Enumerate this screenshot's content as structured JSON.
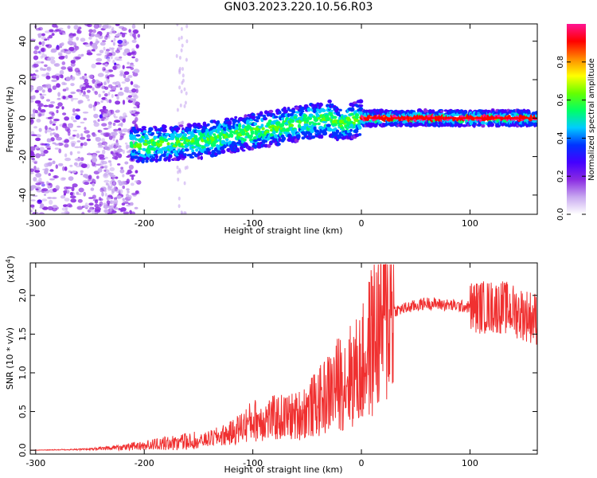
{
  "title": "GN03.2023.220.10.56.R03",
  "colors": {
    "snr_line": "#f03030",
    "colormap": [
      "#ffffff",
      "#c8a8f0",
      "#8a2be2",
      "#4400ff",
      "#0033ff",
      "#00ccff",
      "#00ff66",
      "#66ff00",
      "#ffff00",
      "#ff8800",
      "#ff0000",
      "#ff1493"
    ]
  },
  "chart_data": [
    {
      "type": "heatmap",
      "xlabel": "Height of straight line (km)",
      "ylabel": "Frequency (Hz)",
      "xlim": [
        -305,
        162
      ],
      "ylim": [
        -50,
        49
      ],
      "xticks": [
        -300,
        -200,
        -100,
        0,
        100
      ],
      "xtick_labels": [
        "-300",
        "-200",
        "-100",
        "0",
        "100"
      ],
      "yticks": [
        -40,
        -20,
        0,
        20,
        40
      ],
      "ytick_labels": [
        "-40",
        "-20",
        "0",
        "20",
        "40"
      ],
      "colorbar": {
        "label": "Normalized spectral amplitude",
        "range": [
          0,
          1
        ],
        "ticks": [
          0.0,
          0.2,
          0.4,
          0.6,
          0.8
        ],
        "tick_labels": [
          "0.0",
          "0.2",
          "0.4",
          "0.6",
          "0.8"
        ]
      },
      "ridge": [
        {
          "x": -210,
          "y": -14
        },
        {
          "x": -150,
          "y": -12
        },
        {
          "x": -100,
          "y": -7
        },
        {
          "x": -60,
          "y": -3
        },
        {
          "x": -30,
          "y": 0
        },
        {
          "x": -20,
          "y": -3
        },
        {
          "x": 0,
          "y": 0
        },
        {
          "x": 160,
          "y": 0
        }
      ]
    },
    {
      "type": "line",
      "xlabel": "Height of straight line (km)",
      "ylabel": "SNR (10 * v/v)",
      "y_multiplier": "(x10",
      "y_multiplier_exp": "4",
      "y_multiplier_close": ")",
      "xlim": [
        -305,
        162
      ],
      "ylim": [
        -0.05,
        2.42
      ],
      "xticks": [
        -300,
        -200,
        -100,
        0,
        100
      ],
      "xtick_labels": [
        "-300",
        "-200",
        "-100",
        "0",
        "100"
      ],
      "yticks": [
        0.0,
        0.5,
        1.0,
        1.5,
        2.0
      ],
      "ytick_labels": [
        "0.0",
        "0.5",
        "1.0",
        "1.5",
        "2.0"
      ],
      "envelope": [
        {
          "x": -305,
          "y": 0.0
        },
        {
          "x": -250,
          "y": 0.01
        },
        {
          "x": -200,
          "y": 0.05
        },
        {
          "x": -150,
          "y": 0.1
        },
        {
          "x": -120,
          "y": 0.2
        },
        {
          "x": -100,
          "y": 0.35
        },
        {
          "x": -60,
          "y": 0.4
        },
        {
          "x": -40,
          "y": 0.55
        },
        {
          "x": -20,
          "y": 0.8
        },
        {
          "x": 0,
          "y": 0.95
        },
        {
          "x": 10,
          "y": 1.3
        },
        {
          "x": 30,
          "y": 1.8
        },
        {
          "x": 60,
          "y": 1.9
        },
        {
          "x": 100,
          "y": 1.85
        },
        {
          "x": 130,
          "y": 1.85
        },
        {
          "x": 162,
          "y": 1.7
        }
      ]
    }
  ]
}
